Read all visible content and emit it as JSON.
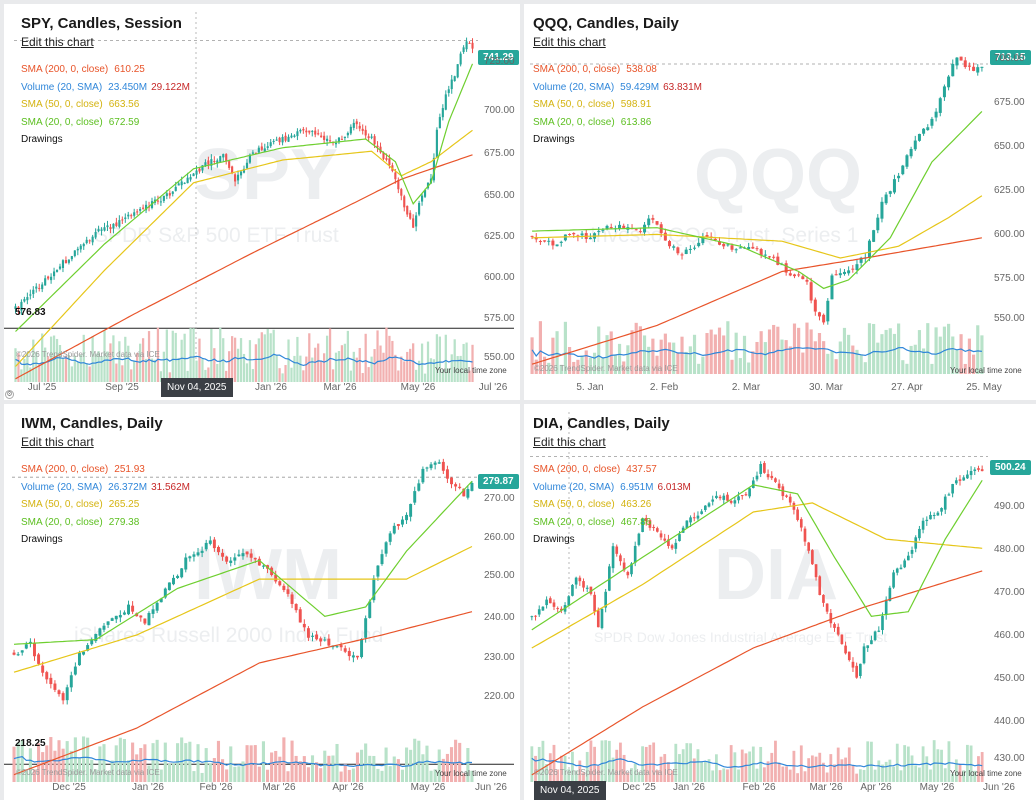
{
  "colors": {
    "up": "#26a69a",
    "down": "#ef5350",
    "sma200": "#e8542a",
    "sma50": "#e6c619",
    "sma20": "#6ecf2f",
    "volsma": "#2f86d9",
    "volup": "#b8e2c9",
    "voldown": "#f2b0b0"
  },
  "panels": [
    {
      "title": "SPY, Candles, Session",
      "edit": "Edit this chart",
      "legend": [
        {
          "label": "SMA (200, 0, close)",
          "value": "610.25",
          "color": "#e8542a"
        },
        {
          "label": "Volume (20, SMA)",
          "value": "23.450M",
          "value2": "29.122M",
          "color": "#2f86d9"
        },
        {
          "label": "SMA (50, 0, close)",
          "value": "663.56",
          "color": "#d4b30f"
        },
        {
          "label": "SMA (20, 0, close)",
          "value": "672.59",
          "color": "#5cbf20"
        },
        {
          "label": "Drawings",
          "value": "",
          "color": "#111"
        }
      ],
      "watermark": "SPY",
      "watermark_sub": "SPDR S&P 500 ETF Trust",
      "last_price": "741.29",
      "hline_label": "576.83",
      "cross_label": "Nov 04, 2025",
      "credit": "©2026 TrendSpider. Market data via ICE",
      "tz": "Your local time zone",
      "yticks": [
        "725.00",
        "700.00",
        "675.00",
        "650.00",
        "625.00",
        "600.00",
        "575.00",
        "550.00"
      ],
      "xticks": [
        "Jul '25",
        "Sep '25",
        "Nov 04, 2025",
        "Jan '26",
        "Mar '26",
        "May '26",
        "Jul '26"
      ]
    },
    {
      "title": "QQQ, Candles, Daily",
      "edit": "Edit this chart",
      "legend": [
        {
          "label": "SMA (200, 0, close)",
          "value": "538.08",
          "color": "#e8542a"
        },
        {
          "label": "Volume (20, SMA)",
          "value": "59.429M",
          "value2": "63.831M",
          "color": "#2f86d9"
        },
        {
          "label": "SMA (50, 0, close)",
          "value": "598.91",
          "color": "#d4b30f"
        },
        {
          "label": "SMA (20, 0, close)",
          "value": "613.86",
          "color": "#5cbf20"
        },
        {
          "label": "Drawings",
          "value": "",
          "color": "#111"
        }
      ],
      "watermark": "QQQ",
      "watermark_sub": "Invesco QQQ Trust, Series 1",
      "last_price": "713.15",
      "credit": "©2026 TrendSpider. Market data via ICE",
      "tz": "Your local time zone",
      "yticks": [
        "700.00",
        "675.00",
        "650.00",
        "625.00",
        "600.00",
        "575.00",
        "550.00"
      ],
      "xticks": [
        "5. Jan",
        "2. Feb",
        "2. Mar",
        "30. Mar",
        "27. Apr",
        "25. May"
      ]
    },
    {
      "title": "IWM, Candles, Daily",
      "edit": "Edit this chart",
      "legend": [
        {
          "label": "SMA (200, 0, close)",
          "value": "251.93",
          "color": "#e8542a"
        },
        {
          "label": "Volume (20, SMA)",
          "value": "26.372M",
          "value2": "31.562M",
          "color": "#2f86d9"
        },
        {
          "label": "SMA (50, 0, close)",
          "value": "265.25",
          "color": "#d4b30f"
        },
        {
          "label": "SMA (20, 0, close)",
          "value": "279.38",
          "color": "#5cbf20"
        },
        {
          "label": "Drawings",
          "value": "",
          "color": "#111"
        }
      ],
      "watermark": "IWM",
      "watermark_sub": "iShares Russell 2000 Index Fund",
      "last_price": "279.87",
      "hline_label": "218.25",
      "credit": "©2026 TrendSpider. Market data via ICE",
      "tz": "Your local time zone",
      "yticks": [
        "270.00",
        "260.00",
        "250.00",
        "240.00",
        "230.00",
        "220.00"
      ],
      "xticks": [
        "Dec '25",
        "Jan '26",
        "Feb '26",
        "Mar '26",
        "Apr '26",
        "May '26",
        "Jun '26"
      ]
    },
    {
      "title": "DIA, Candles, Daily",
      "edit": "Edit this chart",
      "legend": [
        {
          "label": "SMA (200, 0, close)",
          "value": "437.57",
          "color": "#e8542a"
        },
        {
          "label": "Volume (20, SMA)",
          "value": "6.951M",
          "value2": "6.013M",
          "color": "#2f86d9"
        },
        {
          "label": "SMA (50, 0, close)",
          "value": "463.26",
          "color": "#d4b30f"
        },
        {
          "label": "SMA (20, 0, close)",
          "value": "467.86",
          "color": "#5cbf20"
        },
        {
          "label": "Drawings",
          "value": "",
          "color": "#111"
        }
      ],
      "watermark": "DIA",
      "watermark_sub": "SPDR Dow Jones Industrial Average ETF Trust",
      "last_price": "500.24",
      "cross_label": "Nov 04, 2025",
      "credit": "©2026 TrendSpider. Market data via ICE",
      "tz": "Your local time zone",
      "yticks": [
        "490.00",
        "480.00",
        "470.00",
        "460.00",
        "450.00",
        "440.00",
        "430.00"
      ],
      "xticks": [
        "Nov 04, 2025",
        "Dec '25",
        "Jan '26",
        "Feb '26",
        "Mar '26",
        "Apr '26",
        "May '26",
        "Jun '26"
      ]
    }
  ],
  "chart_data": [
    {
      "type": "candlestick",
      "title": "SPY, Candles, Session",
      "ylim": [
        545,
        745
      ],
      "last": 741.29,
      "hline": 576.83,
      "anchors": [
        [
          0,
          588
        ],
        [
          4,
          594
        ],
        [
          14,
          611
        ],
        [
          28,
          632
        ],
        [
          40,
          642
        ],
        [
          50,
          652
        ],
        [
          58,
          662
        ],
        [
          65,
          672
        ],
        [
          70,
          675
        ],
        [
          74,
          660
        ],
        [
          80,
          678
        ],
        [
          88,
          684
        ],
        [
          95,
          688
        ],
        [
          100,
          690
        ],
        [
          108,
          682
        ],
        [
          114,
          694
        ],
        [
          120,
          686
        ],
        [
          126,
          670
        ],
        [
          130,
          652
        ],
        [
          134,
          635
        ],
        [
          136,
          648
        ],
        [
          140,
          662
        ],
        [
          142,
          690
        ],
        [
          145,
          710
        ],
        [
          148,
          722
        ],
        [
          150,
          734
        ],
        [
          152,
          742
        ],
        [
          154,
          738
        ]
      ],
      "n": 155,
      "sma200": [
        [
          0,
          548
        ],
        [
          40,
          585
        ],
        [
          80,
          620
        ],
        [
          110,
          645
        ],
        [
          130,
          662
        ],
        [
          154,
          676
        ]
      ],
      "sma50": [
        [
          0,
          555
        ],
        [
          30,
          610
        ],
        [
          60,
          660
        ],
        [
          90,
          673
        ],
        [
          120,
          678
        ],
        [
          130,
          664
        ],
        [
          140,
          672
        ],
        [
          154,
          690
        ]
      ],
      "sma20": [
        [
          0,
          575
        ],
        [
          30,
          625
        ],
        [
          60,
          668
        ],
        [
          90,
          680
        ],
        [
          118,
          685
        ],
        [
          128,
          672
        ],
        [
          134,
          648
        ],
        [
          140,
          660
        ],
        [
          146,
          695
        ],
        [
          154,
          728
        ]
      ]
    },
    {
      "type": "candlestick",
      "title": "QQQ, Candles, Daily",
      "ylim": [
        528,
        725
      ],
      "last": 713.15,
      "anchors": [
        [
          0,
          612
        ],
        [
          5,
          606
        ],
        [
          10,
          613
        ],
        [
          14,
          610
        ],
        [
          18,
          616
        ],
        [
          22,
          617
        ],
        [
          26,
          612
        ],
        [
          28,
          620
        ],
        [
          30,
          618
        ],
        [
          33,
          606
        ],
        [
          36,
          600
        ],
        [
          42,
          611
        ],
        [
          46,
          605
        ],
        [
          52,
          604
        ],
        [
          58,
          598
        ],
        [
          62,
          588
        ],
        [
          66,
          584
        ],
        [
          68,
          565
        ],
        [
          70,
          560
        ],
        [
          72,
          588
        ],
        [
          76,
          590
        ],
        [
          80,
          600
        ],
        [
          84,
          630
        ],
        [
          88,
          648
        ],
        [
          92,
          668
        ],
        [
          96,
          680
        ],
        [
          100,
          705
        ],
        [
          102,
          718
        ],
        [
          104,
          712
        ],
        [
          106,
          708
        ],
        [
          108,
          713
        ]
      ],
      "n": 109,
      "sma200": [
        [
          0,
          535
        ],
        [
          30,
          558
        ],
        [
          60,
          590
        ],
        [
          80,
          598
        ],
        [
          108,
          610
        ]
      ],
      "sma50": [
        [
          0,
          610
        ],
        [
          30,
          612
        ],
        [
          60,
          608
        ],
        [
          74,
          598
        ],
        [
          88,
          605
        ],
        [
          100,
          622
        ],
        [
          108,
          635
        ]
      ],
      "sma20": [
        [
          0,
          614
        ],
        [
          30,
          616
        ],
        [
          50,
          605
        ],
        [
          64,
          590
        ],
        [
          70,
          580
        ],
        [
          76,
          585
        ],
        [
          86,
          610
        ],
        [
          96,
          655
        ],
        [
          108,
          685
        ]
      ]
    },
    {
      "type": "candlestick",
      "title": "IWM, Candles, Daily",
      "ylim": [
        214,
        287
      ],
      "last": 279.87,
      "hline": 218.25,
      "anchors": [
        [
          0,
          242
        ],
        [
          4,
          244
        ],
        [
          8,
          236
        ],
        [
          12,
          232
        ],
        [
          16,
          242
        ],
        [
          22,
          248
        ],
        [
          28,
          252
        ],
        [
          32,
          249
        ],
        [
          36,
          254
        ],
        [
          42,
          262
        ],
        [
          48,
          266
        ],
        [
          52,
          262
        ],
        [
          56,
          264
        ],
        [
          62,
          260
        ],
        [
          66,
          256
        ],
        [
          72,
          246
        ],
        [
          78,
          244
        ],
        [
          84,
          241
        ],
        [
          88,
          258
        ],
        [
          92,
          268
        ],
        [
          96,
          272
        ],
        [
          100,
          281
        ],
        [
          104,
          283
        ],
        [
          106,
          280
        ],
        [
          108,
          278
        ],
        [
          110,
          276
        ],
        [
          112,
          279
        ]
      ],
      "n": 113,
      "sma200": [
        [
          0,
          216
        ],
        [
          30,
          226
        ],
        [
          60,
          240
        ],
        [
          90,
          246
        ],
        [
          112,
          251
        ]
      ],
      "sma50": [
        [
          0,
          238
        ],
        [
          30,
          246
        ],
        [
          60,
          258
        ],
        [
          80,
          258
        ],
        [
          96,
          258
        ],
        [
          112,
          265
        ]
      ],
      "sma20": [
        [
          0,
          244
        ],
        [
          20,
          245
        ],
        [
          40,
          256
        ],
        [
          60,
          262
        ],
        [
          76,
          250
        ],
        [
          86,
          252
        ],
        [
          96,
          264
        ],
        [
          112,
          279
        ]
      ]
    },
    {
      "type": "candlestick",
      "title": "DIA, Candles, Daily",
      "ylim": [
        428,
        503
      ],
      "last": 500.24,
      "anchors": [
        [
          0,
          465
        ],
        [
          4,
          468
        ],
        [
          8,
          466
        ],
        [
          12,
          474
        ],
        [
          16,
          470
        ],
        [
          18,
          462
        ],
        [
          22,
          480
        ],
        [
          26,
          474
        ],
        [
          30,
          486
        ],
        [
          34,
          484
        ],
        [
          38,
          480
        ],
        [
          42,
          486
        ],
        [
          46,
          488
        ],
        [
          50,
          492
        ],
        [
          54,
          490
        ],
        [
          58,
          492
        ],
        [
          62,
          498
        ],
        [
          66,
          494
        ],
        [
          70,
          490
        ],
        [
          74,
          482
        ],
        [
          78,
          470
        ],
        [
          82,
          462
        ],
        [
          86,
          456
        ],
        [
          88,
          452
        ],
        [
          90,
          458
        ],
        [
          94,
          462
        ],
        [
          98,
          474
        ],
        [
          102,
          478
        ],
        [
          106,
          486
        ],
        [
          110,
          488
        ],
        [
          114,
          494
        ],
        [
          118,
          496
        ],
        [
          120,
          498
        ],
        [
          122,
          497
        ]
      ],
      "n": 123,
      "sma200": [
        [
          0,
          430
        ],
        [
          30,
          445
        ],
        [
          60,
          458
        ],
        [
          90,
          467
        ],
        [
          122,
          475
        ]
      ],
      "sma50": [
        [
          0,
          458
        ],
        [
          30,
          472
        ],
        [
          60,
          488
        ],
        [
          76,
          490
        ],
        [
          96,
          482
        ],
        [
          122,
          480
        ]
      ],
      "sma20": [
        [
          0,
          462
        ],
        [
          30,
          478
        ],
        [
          60,
          494
        ],
        [
          72,
          492
        ],
        [
          82,
          478
        ],
        [
          92,
          465
        ],
        [
          102,
          466
        ],
        [
          112,
          482
        ],
        [
          122,
          495
        ]
      ]
    }
  ]
}
